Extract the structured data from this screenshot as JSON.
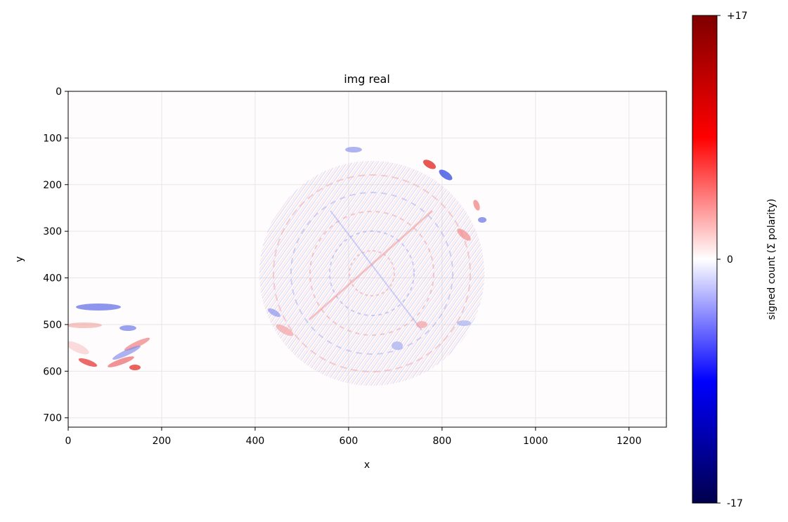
{
  "chart_data": {
    "type": "heatmap",
    "title": "img real",
    "xlabel": "x",
    "ylabel": "y",
    "xlim": [
      0,
      1280
    ],
    "ylim": [
      720,
      0
    ],
    "y_axis_inverted": true,
    "xticks": [
      0,
      200,
      400,
      600,
      800,
      1000,
      1200
    ],
    "yticks": [
      0,
      100,
      200,
      300,
      400,
      500,
      600,
      700
    ],
    "grid": true,
    "colormap": "seismic",
    "colormap_stops": [
      "#00004c",
      "#0000ff",
      "#ffffff",
      "#ff0000",
      "#7f0000"
    ],
    "colorbar": {
      "label": "signed count (Σ polarity)",
      "range": [
        -17,
        17
      ],
      "ticks": [
        {
          "value": 17,
          "label": "+17"
        },
        {
          "value": 0,
          "label": "0"
        },
        {
          "value": -17,
          "label": "-17"
        }
      ]
    },
    "features": [
      {
        "name": "circular pattern",
        "center": [
          650,
          390
        ],
        "radius": 275,
        "peak_value": 9
      },
      {
        "name": "hand region",
        "center": [
          90,
          520
        ],
        "peak_value": 10
      }
    ]
  }
}
